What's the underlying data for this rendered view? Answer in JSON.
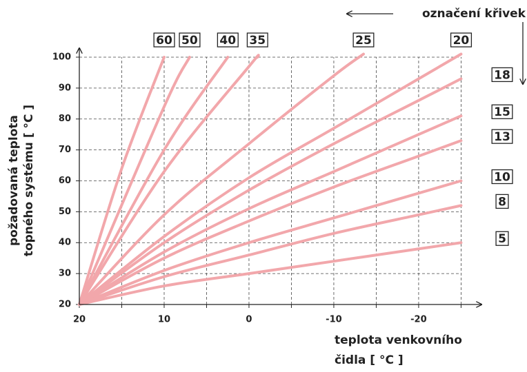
{
  "chart_data": {
    "type": "line",
    "annotation": "označení křivek",
    "xlabel": [
      "teplota venkovního",
      "čidla [ °C ]"
    ],
    "ylabel": [
      "požadovaná teplota",
      "topného systému [ °C ]"
    ],
    "xlim": [
      20,
      -27
    ],
    "ylim": [
      20,
      102
    ],
    "xticks": [
      20,
      10,
      0,
      -10,
      -20
    ],
    "xminor": [
      15,
      5,
      -5,
      -15,
      -25
    ],
    "yticks": [
      20,
      30,
      40,
      50,
      60,
      70,
      80,
      90,
      100
    ],
    "grid": true,
    "color": "#f2a7ab",
    "series": [
      {
        "name": "60",
        "x": [
          20,
          15,
          10
        ],
        "values": [
          20,
          64,
          100
        ]
      },
      {
        "name": "50",
        "x": [
          20,
          10,
          7
        ],
        "values": [
          20,
          84,
          100
        ]
      },
      {
        "name": "40",
        "x": [
          20,
          10,
          2.5
        ],
        "values": [
          20,
          70,
          100
        ]
      },
      {
        "name": "35",
        "x": [
          20,
          10,
          0,
          -1
        ],
        "values": [
          20,
          63,
          97,
          100
        ]
      },
      {
        "name": "25",
        "x": [
          20,
          10,
          0,
          -10,
          -13.5
        ],
        "values": [
          20,
          49,
          72,
          94,
          101
        ]
      },
      {
        "name": "20",
        "x": [
          20,
          10,
          0,
          -10,
          -20,
          -25
        ],
        "values": [
          20,
          42,
          61,
          77,
          93,
          101
        ]
      },
      {
        "name": "18",
        "x": [
          20,
          10,
          0,
          -10,
          -20,
          -25
        ],
        "values": [
          20,
          40,
          57,
          72,
          86,
          93
        ]
      },
      {
        "name": "15",
        "x": [
          20,
          10,
          0,
          -10,
          -20,
          -25
        ],
        "values": [
          20,
          37,
          51,
          63,
          75,
          81
        ]
      },
      {
        "name": "13",
        "x": [
          20,
          10,
          0,
          -10,
          -20,
          -25
        ],
        "values": [
          20,
          35,
          47,
          58,
          68,
          73
        ]
      },
      {
        "name": "10",
        "x": [
          20,
          10,
          0,
          -10,
          -20,
          -25
        ],
        "values": [
          20,
          31,
          40,
          48,
          56,
          60
        ]
      },
      {
        "name": "8",
        "x": [
          20,
          10,
          0,
          -10,
          -20,
          -25
        ],
        "values": [
          20,
          29,
          36,
          43,
          49,
          52
        ]
      },
      {
        "name": "5",
        "x": [
          20,
          10,
          0,
          -10,
          -20,
          -25
        ],
        "values": [
          20,
          26,
          30,
          34,
          38,
          40
        ]
      }
    ]
  }
}
